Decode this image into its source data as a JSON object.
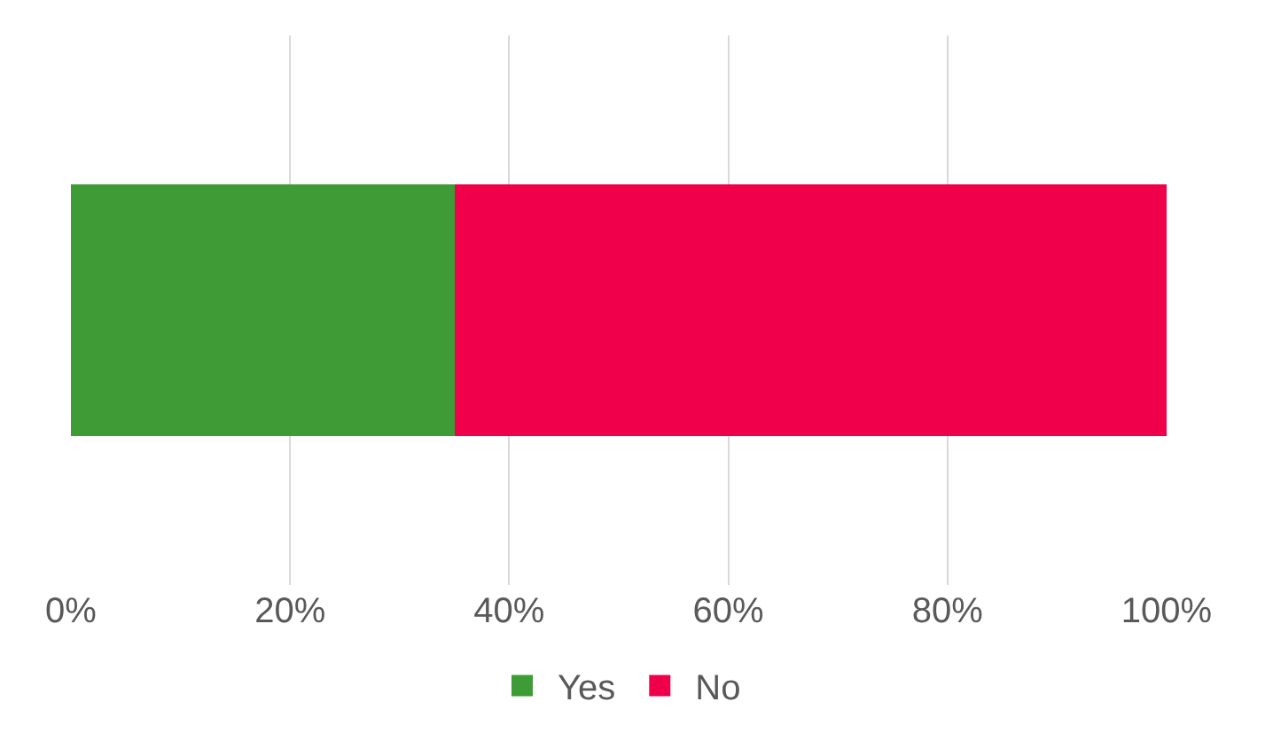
{
  "chart_data": {
    "type": "bar",
    "orientation": "horizontal",
    "stacked": true,
    "categories": [
      null
    ],
    "series": [
      {
        "name": "Yes",
        "color": "#3e9b35",
        "values": [
          35
        ]
      },
      {
        "name": "No",
        "color": "#f0004a",
        "values": [
          65
        ]
      }
    ],
    "xlim": [
      0,
      100
    ],
    "xticks": [
      {
        "value": 0,
        "label": "0%"
      },
      {
        "value": 20,
        "label": "20%"
      },
      {
        "value": 40,
        "label": "40%"
      },
      {
        "value": 60,
        "label": "60%"
      },
      {
        "value": 80,
        "label": "80%"
      },
      {
        "value": 100,
        "label": "100%"
      }
    ],
    "grid": "x",
    "legend": "bottom",
    "tick_labels": "x"
  }
}
